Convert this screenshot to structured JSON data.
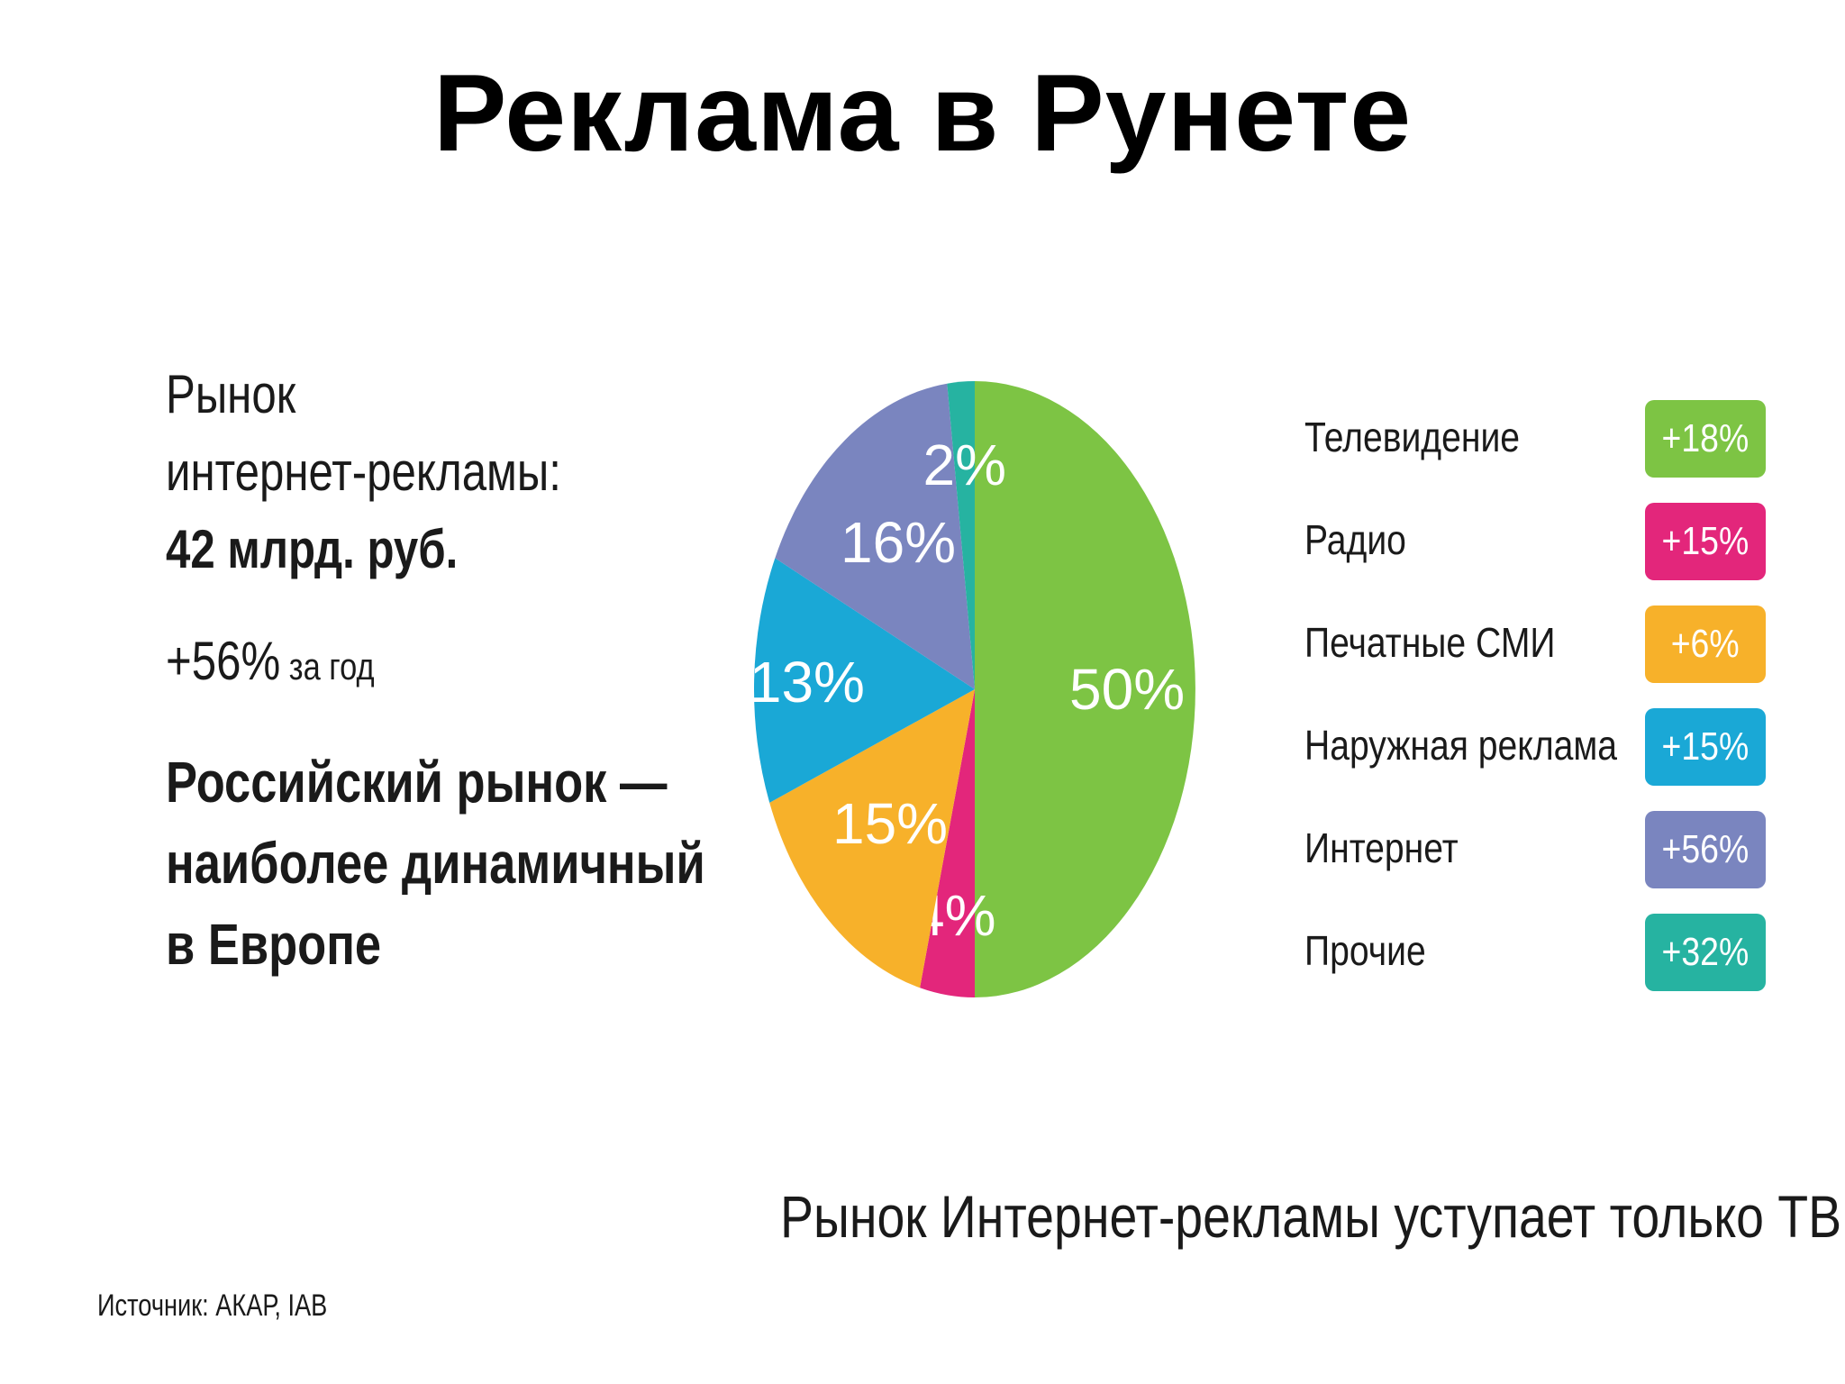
{
  "title": "Реклама в Рунете",
  "left_panel": {
    "market_line1": "Рынок",
    "market_line2": "интернет-рекламы:",
    "market_value": "42 млрд. руб.",
    "growth_pct": "+56%",
    "growth_text": " за год",
    "claim_line1": "Российский рынок —",
    "claim_line2": "наиболее динамичный",
    "claim_line3": "в Европе"
  },
  "chart_data": {
    "type": "pie",
    "slices": [
      {
        "label": "Телевидение",
        "value": 50,
        "display": "50%",
        "color": "#7dc444",
        "growth": "+18%"
      },
      {
        "label": "Радио",
        "value": 4,
        "display": "4%",
        "color": "#e3267b",
        "growth": "+15%"
      },
      {
        "label": "Печатные СМИ",
        "value": 15,
        "display": "15%",
        "color": "#f7b12a",
        "growth": "+6%"
      },
      {
        "label": "Наружная реклама",
        "value": 13,
        "display": "13%",
        "color": "#1aa8d6",
        "growth": "+15%"
      },
      {
        "label": "Интернет",
        "value": 16,
        "display": "16%",
        "color": "#7a85bf",
        "growth": "+56%"
      },
      {
        "label": "Прочие",
        "value": 2,
        "display": "2%",
        "color": "#26b3a1",
        "growth": "+32%"
      }
    ]
  },
  "footer_note": "Рынок Интернет-рекламы уступает только ТВ",
  "source": "Источник: АКАР, IAB"
}
